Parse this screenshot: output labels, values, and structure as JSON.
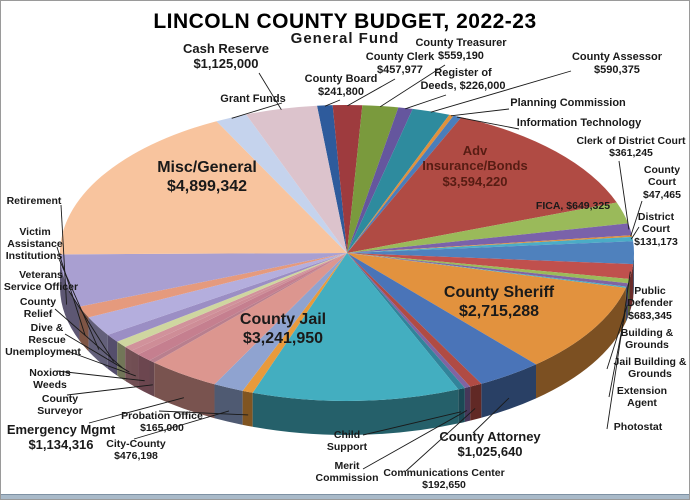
{
  "title": "LINCOLN COUNTY BUDGET, 2022-23",
  "subtitle": "General Fund",
  "chart_data": {
    "type": "pie",
    "style": "3d-pie",
    "title": "LINCOLN COUNTY BUDGET, 2022-23",
    "subtitle": "General Fund",
    "unit": "USD",
    "note": "size is the value shown on screen where a dollar figure is printed; slices without printed values use estimated sizes (estimated:true) inferred from slice angles",
    "slices": [
      {
        "id": "county_board",
        "label": "County Board",
        "value": 241800,
        "size": 241800,
        "estimated": false,
        "color": "#2E5B9C",
        "lines": [
          "County Board",
          "$241,800"
        ]
      },
      {
        "id": "county_clerk",
        "label": "County Clerk",
        "value": 457977,
        "size": 457977,
        "estimated": false,
        "color": "#9E3B3E",
        "lines": [
          "County Clerk",
          "$457,977"
        ]
      },
      {
        "id": "county_treasurer",
        "label": "County Treasurer",
        "value": 559190,
        "size": 559190,
        "estimated": false,
        "color": "#7A9A3D",
        "lines": [
          "County Treasurer",
          "$559,190"
        ]
      },
      {
        "id": "register_deeds",
        "label": "Register of Deeds",
        "value": 226000,
        "size": 226000,
        "estimated": false,
        "color": "#65569E",
        "lines": [
          "Register of",
          "Deeds, $226,000"
        ]
      },
      {
        "id": "county_assessor",
        "label": "County Assessor",
        "value": 590375,
        "size": 590375,
        "estimated": false,
        "color": "#2E8B9E",
        "lines": [
          "County Assessor",
          "$590,375"
        ]
      },
      {
        "id": "planning_commission",
        "label": "Planning Commission",
        "value": null,
        "size": 70000,
        "estimated": true,
        "color": "#E0913C",
        "lines": [
          "Planning Commission"
        ]
      },
      {
        "id": "information_technology",
        "label": "Information Technology",
        "value": null,
        "size": 130000,
        "estimated": true,
        "color": "#4A7EBB",
        "lines": [
          "Information Technology"
        ]
      },
      {
        "id": "adv_insurance",
        "label": "Adv Insurance/Bonds",
        "value": 3594220,
        "size": 3594220,
        "estimated": false,
        "color": "#B04B44",
        "lines": [
          "Adv",
          "Insurance/Bonds",
          "$3,594,220"
        ]
      },
      {
        "id": "fica",
        "label": "FICA",
        "value": 649325,
        "size": 649325,
        "estimated": false,
        "color": "#9ABA5A",
        "lines": [
          "FICA, $649,325"
        ]
      },
      {
        "id": "clerk_district_court",
        "label": "Clerk of District Court",
        "value": 361245,
        "size": 361245,
        "estimated": false,
        "color": "#7A62AA",
        "lines": [
          "Clerk of District Court",
          "$361,245"
        ]
      },
      {
        "id": "county_court",
        "label": "County Court",
        "value": 47465,
        "size": 47465,
        "estimated": false,
        "color": "#E0913C",
        "lines": [
          "County",
          "Court",
          "$47,465"
        ]
      },
      {
        "id": "district_court",
        "label": "District Court",
        "value": 131173,
        "size": 131173,
        "estimated": false,
        "color": "#4BACC6",
        "lines": [
          "District",
          "Court",
          "$131,173"
        ]
      },
      {
        "id": "public_defender",
        "label": "Public Defender",
        "value": 683345,
        "size": 683345,
        "estimated": false,
        "color": "#4F81BD",
        "lines": [
          "Public",
          "Defender",
          "$683,345"
        ]
      },
      {
        "id": "building_grounds",
        "label": "Building & Grounds",
        "value": null,
        "size": 450000,
        "estimated": true,
        "color": "#C0504D",
        "lines": [
          "Building &",
          "Grounds"
        ]
      },
      {
        "id": "jail_building_grounds",
        "label": "Jail Building & Grounds",
        "value": null,
        "size": 130000,
        "estimated": true,
        "color": "#9BBB59",
        "lines": [
          "Jail Building &",
          "Grounds"
        ]
      },
      {
        "id": "extension_agent",
        "label": "Extension Agent",
        "value": null,
        "size": 100000,
        "estimated": true,
        "color": "#8064A2",
        "lines": [
          "Extension",
          "Agent"
        ]
      },
      {
        "id": "photostat",
        "label": "Photostat",
        "value": null,
        "size": 40000,
        "estimated": true,
        "color": "#4BACC6",
        "lines": [
          "Photostat"
        ]
      },
      {
        "id": "county_sheriff",
        "label": "County Sheriff",
        "value": 2715288,
        "size": 2715288,
        "estimated": false,
        "color": "#E2923E",
        "lines": [
          "County Sheriff",
          "$2,715,288"
        ]
      },
      {
        "id": "county_attorney",
        "label": "County Attorney",
        "value": 1025640,
        "size": 1025640,
        "estimated": false,
        "color": "#4A74B8",
        "lines": [
          "County Attorney",
          "$1,025,640"
        ]
      },
      {
        "id": "communications_center",
        "label": "Communications Center",
        "value": 192650,
        "size": 192650,
        "estimated": false,
        "color": "#B04B44",
        "lines": [
          "Communications Center",
          "$192,650"
        ]
      },
      {
        "id": "merit_commission",
        "label": "Merit Commission",
        "value": null,
        "size": 90000,
        "estimated": true,
        "color": "#8064A2",
        "lines": [
          "Merit",
          "Commission"
        ]
      },
      {
        "id": "child_support",
        "label": "Child Support",
        "value": null,
        "size": 110000,
        "estimated": true,
        "color": "#31849B",
        "lines": [
          "Child",
          "Support"
        ]
      },
      {
        "id": "county_jail",
        "label": "County Jail",
        "value": 3241950,
        "size": 3241950,
        "estimated": false,
        "color": "#43AEC0",
        "lines": [
          "County Jail",
          "$3,241,950"
        ]
      },
      {
        "id": "probation_office",
        "label": "Probation Office",
        "value": 165000,
        "size": 165000,
        "estimated": false,
        "color": "#E89A3C",
        "lines": [
          "Probation Office",
          "$165,000"
        ]
      },
      {
        "id": "city_county",
        "label": "City-County",
        "value": 476198,
        "size": 476198,
        "estimated": false,
        "color": "#8FA3D0",
        "lines": [
          "City-County",
          "$476,198"
        ]
      },
      {
        "id": "emergency_mgmt",
        "label": "Emergency Mgmt",
        "value": 1134316,
        "size": 1134316,
        "estimated": false,
        "color": "#DC968F",
        "lines": [
          "Emergency Mgmt",
          "$1,134,316"
        ]
      },
      {
        "id": "county_surveyor",
        "label": "County Surveyor",
        "value": null,
        "size": 100000,
        "estimated": true,
        "color": "#B97F8E",
        "lines": [
          "County",
          "Surveyor"
        ]
      },
      {
        "id": "noxious_weeds",
        "label": "Noxious Weeds",
        "value": null,
        "size": 250000,
        "estimated": true,
        "color": "#C57F8F",
        "lines": [
          "Noxious",
          "Weeds"
        ]
      },
      {
        "id": "unemployment",
        "label": "Unemployment",
        "value": null,
        "size": 150000,
        "estimated": true,
        "color": "#CE8D97",
        "lines": [
          "Unemployment"
        ]
      },
      {
        "id": "dive_rescue",
        "label": "Dive & Rescue",
        "value": null,
        "size": 150000,
        "estimated": true,
        "color": "#D1929B",
        "lines": [
          "Dive &",
          "Rescue"
        ]
      },
      {
        "id": "county_relief",
        "label": "County Relief",
        "value": null,
        "size": 200000,
        "estimated": true,
        "color": "#CFD6A0",
        "lines": [
          "County",
          "Relief"
        ]
      },
      {
        "id": "veterans",
        "label": "Veterans Service Officer",
        "value": null,
        "size": 250000,
        "estimated": true,
        "color": "#9B8EC4",
        "lines": [
          "Veterans",
          "Service Officer"
        ]
      },
      {
        "id": "institutions",
        "label": "Institutions",
        "value": null,
        "size": 600000,
        "estimated": true,
        "color": "#B4AEDD",
        "lines": [
          "Institutions"
        ]
      },
      {
        "id": "victim_assistance",
        "label": "Victim Assistance",
        "value": null,
        "size": 350000,
        "estimated": true,
        "color": "#E59A7D",
        "lines": [
          "Victim",
          "Assistance"
        ]
      },
      {
        "id": "retirement",
        "label": "Retirement",
        "value": null,
        "size": 1600000,
        "estimated": true,
        "color": "#A99FD1",
        "lines": [
          "Retirement"
        ]
      },
      {
        "id": "misc_general",
        "label": "Misc/General",
        "value": 4899342,
        "size": 4899342,
        "estimated": false,
        "color": "#F8C49E",
        "lines": [
          "Misc/General",
          "$4,899,342"
        ]
      },
      {
        "id": "grant_funds",
        "label": "Grant Funds",
        "value": null,
        "size": 500000,
        "estimated": true,
        "color": "#C5D3ED",
        "lines": [
          "Grant Funds"
        ]
      },
      {
        "id": "cash_reserve",
        "label": "Cash Reserve",
        "value": 1125000,
        "size": 1125000,
        "estimated": false,
        "color": "#DCC3CC",
        "lines": [
          "Cash Reserve",
          "$1,125,000"
        ]
      }
    ]
  }
}
